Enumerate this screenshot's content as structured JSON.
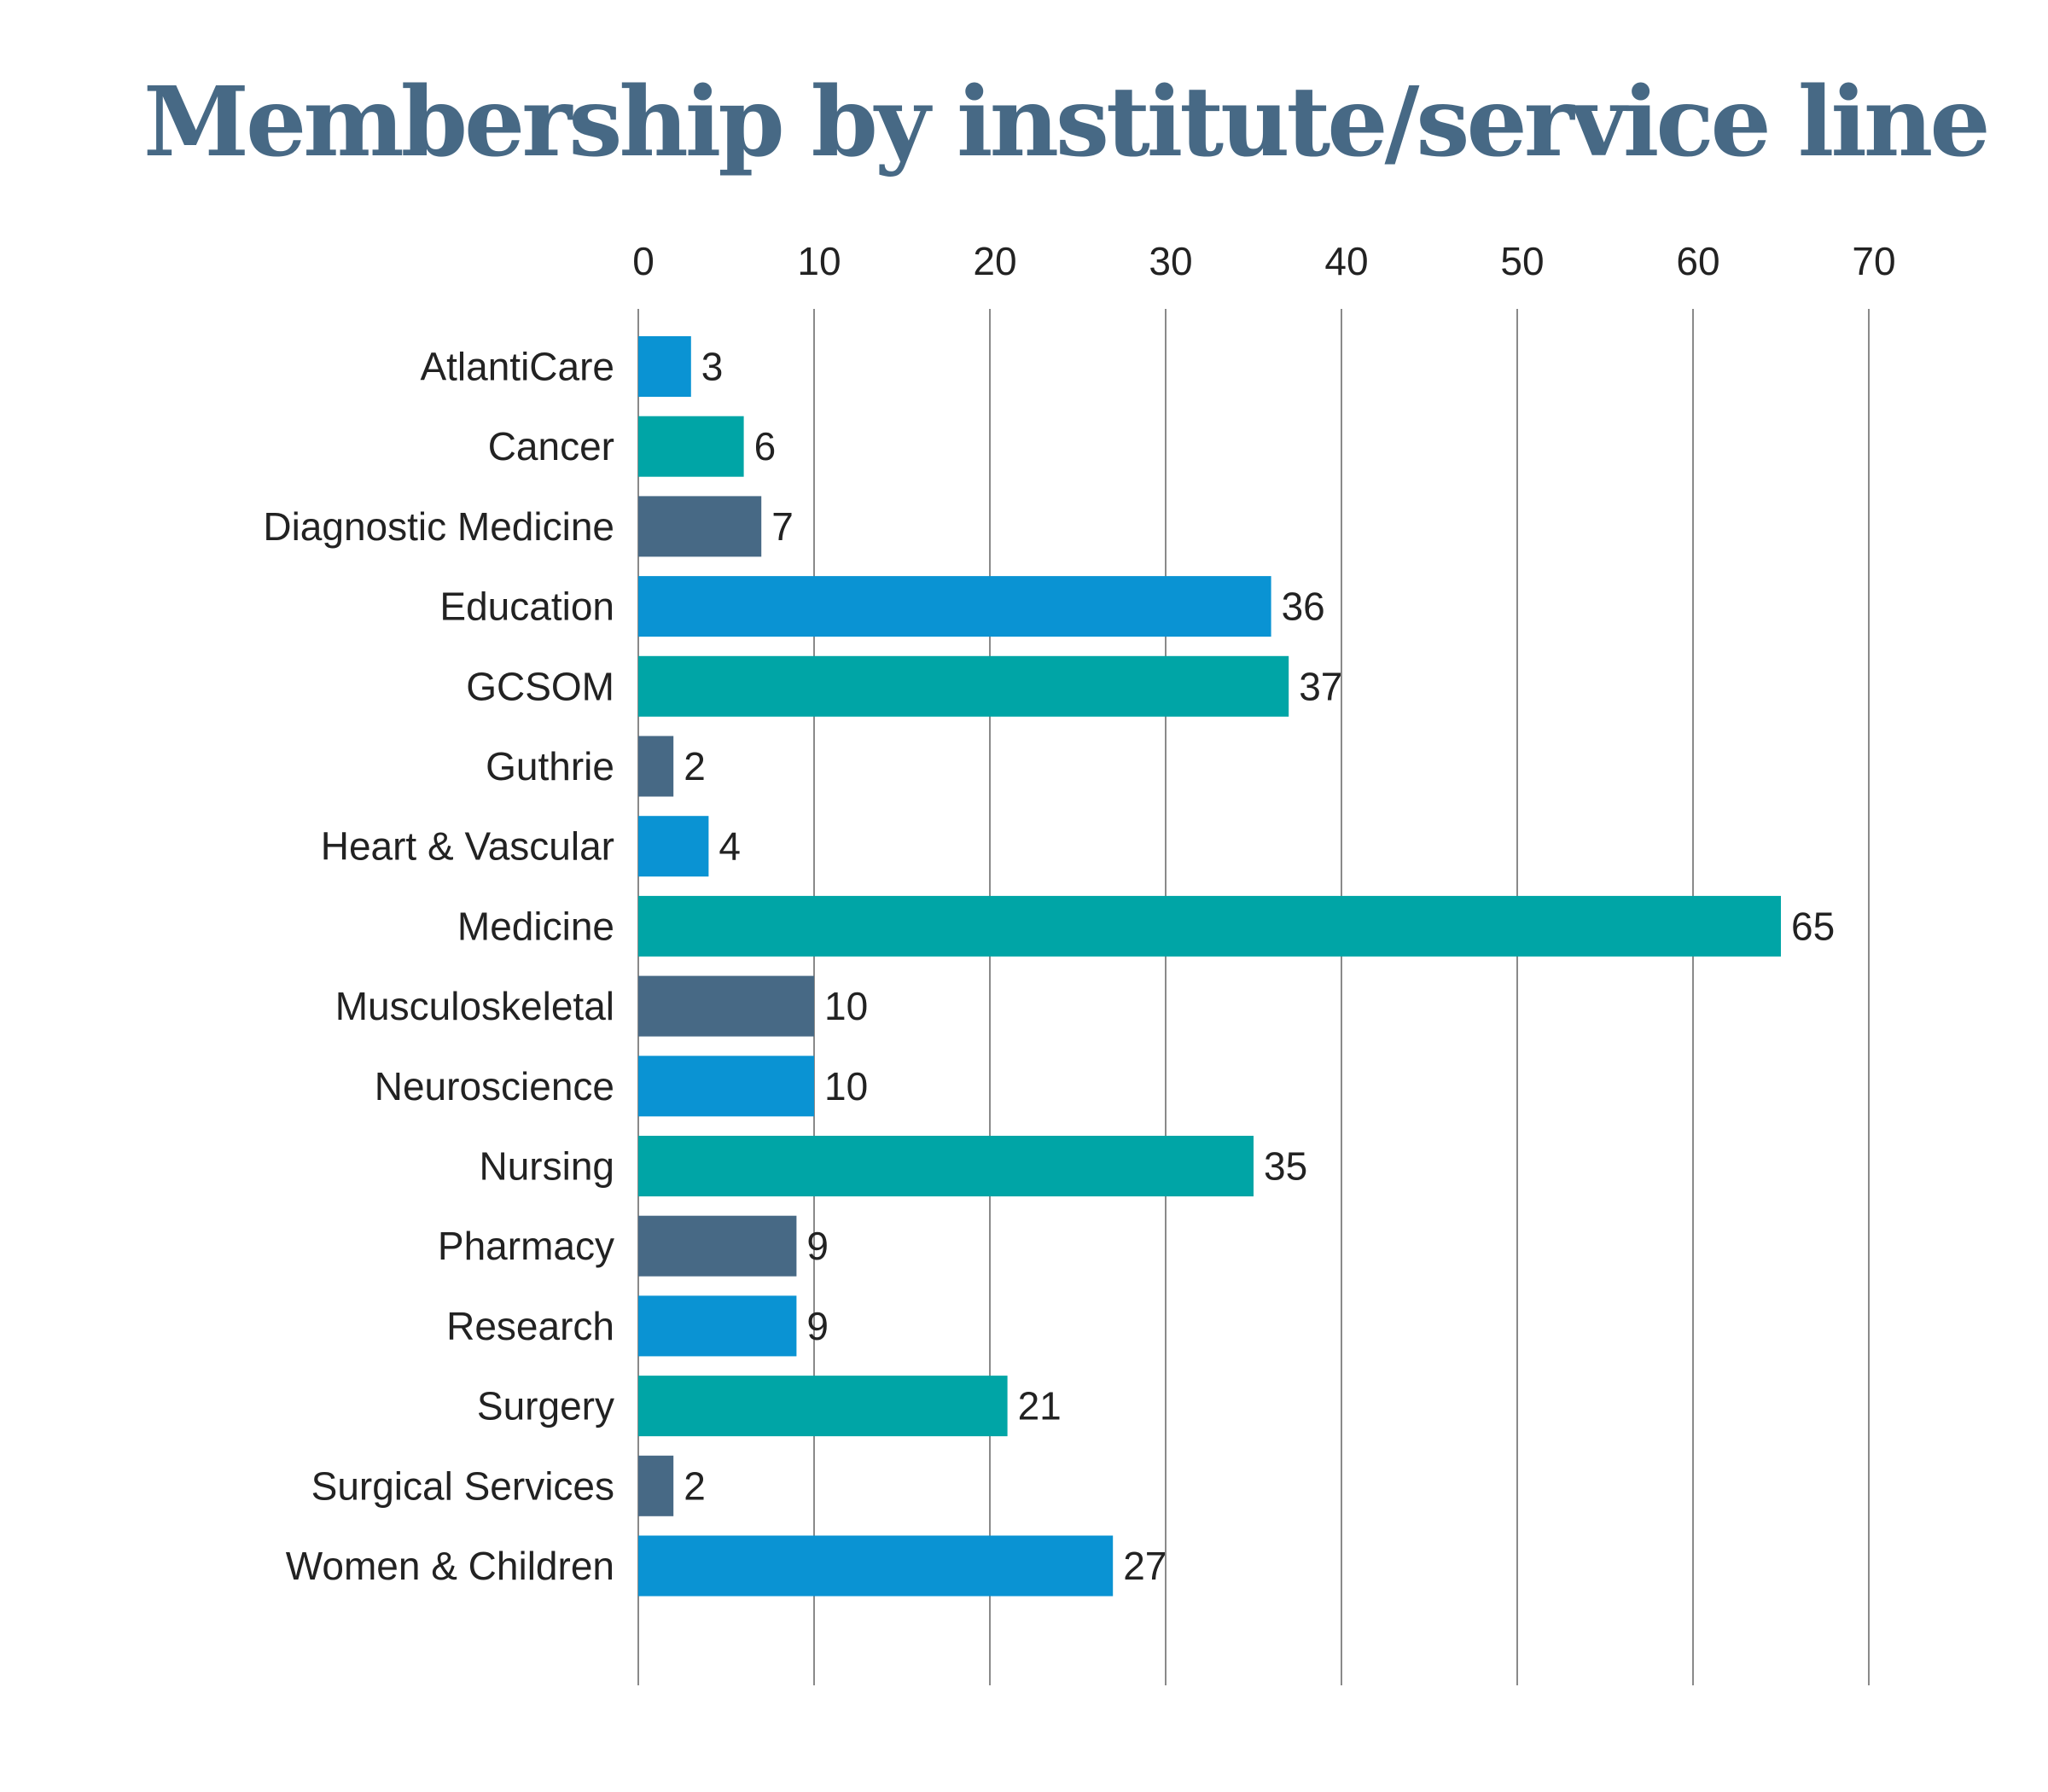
{
  "chart_data": {
    "type": "bar",
    "orientation": "horizontal",
    "title": "Membership by institute/service line",
    "xlabel": "",
    "ylabel": "",
    "xlim": [
      0,
      70
    ],
    "x_ticks": [
      0,
      10,
      20,
      30,
      40,
      50,
      60,
      70
    ],
    "x_axis_position": "top",
    "grid": true,
    "categories": [
      "AtlantiCare",
      "Cancer",
      "Diagnostic Medicine",
      "Education",
      "GCSOM",
      "Guthrie",
      "Heart & Vascular",
      "Medicine",
      "Musculoskeletal",
      "Neuroscience",
      "Nursing",
      "Pharmacy",
      "Research",
      "Surgery",
      "Surgical Services",
      "Women & Children"
    ],
    "values": [
      3,
      6,
      7,
      36,
      37,
      2,
      4,
      65,
      10,
      10,
      35,
      9,
      9,
      21,
      2,
      27
    ],
    "colors": [
      "#0a93d3",
      "#00a5a6",
      "#476985"
    ],
    "data_labels": true
  }
}
